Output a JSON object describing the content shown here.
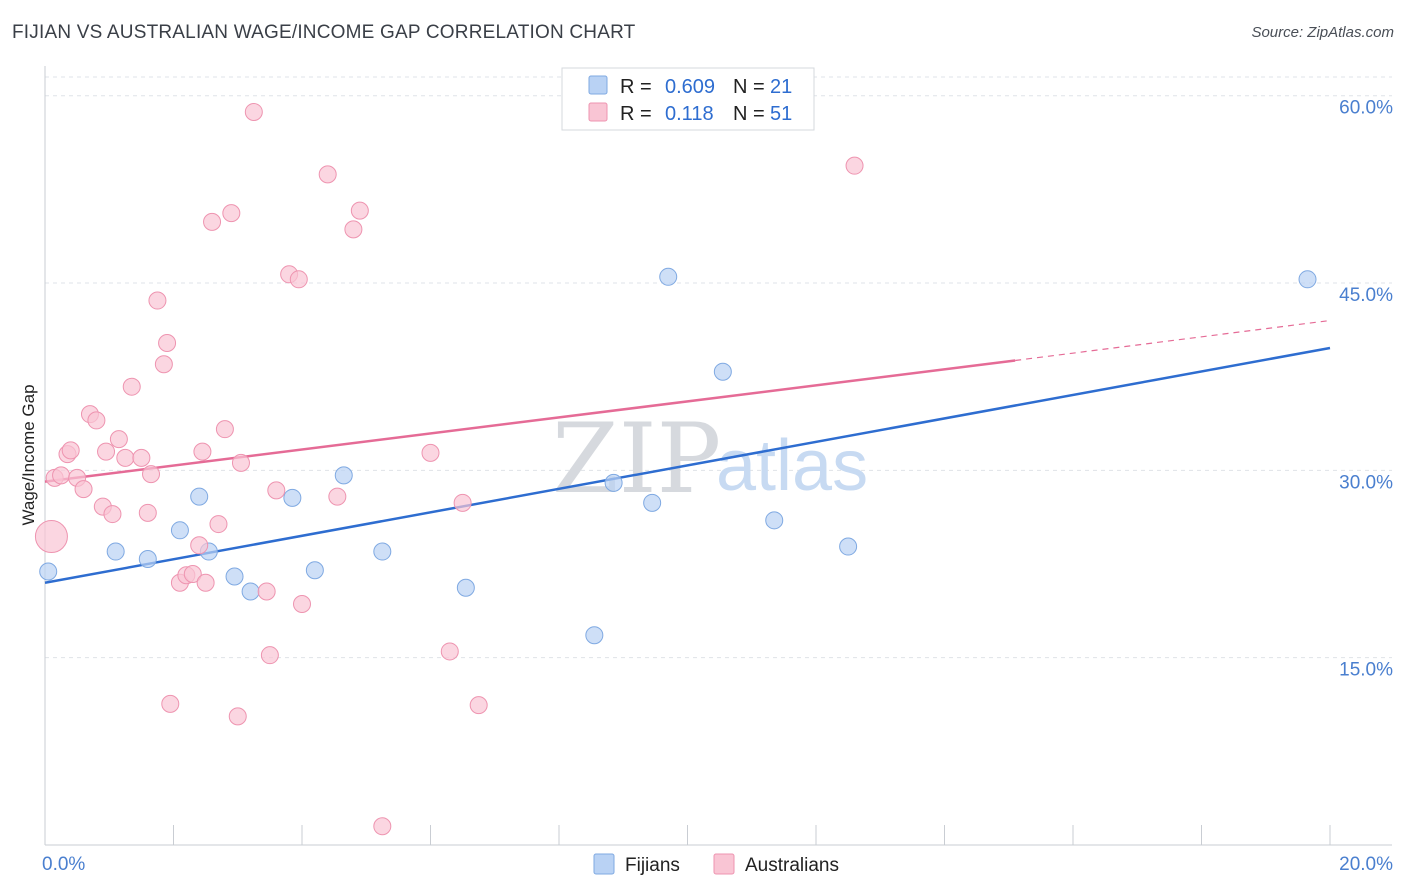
{
  "title": "FIJIAN VS AUSTRALIAN WAGE/INCOME GAP CORRELATION CHART",
  "source": "Source: ZipAtlas.com",
  "watermark": {
    "zip": "ZIP",
    "atlas": "atlas"
  },
  "colors": {
    "fijians_fill": "#b9d2f4",
    "fijians_stroke": "#7fa9e2",
    "fijians_line": "#2e6dd0",
    "australians_fill": "#f9c5d4",
    "australians_stroke": "#ee94b0",
    "australians_line": "#e56b96",
    "grid": "#dfe3e8",
    "tick_text": "#4a7fcf"
  },
  "legend": {
    "rows": [
      {
        "series": "fijians",
        "r_label": "R =",
        "r_value": "0.609",
        "n_label": "N =",
        "n_value": "21"
      },
      {
        "series": "australians",
        "r_label": "R =",
        "r_value": "0.118",
        "n_label": "N =",
        "n_value": "51"
      }
    ]
  },
  "bottom_legend": [
    "Fijians",
    "Australians"
  ],
  "chart_data": {
    "type": "scatter",
    "title": "FIJIAN VS AUSTRALIAN WAGE/INCOME GAP CORRELATION CHART",
    "xlabel": "",
    "ylabel": "Wage/Income Gap",
    "xlim": [
      0,
      20
    ],
    "ylim": [
      0,
      61.5
    ],
    "x_tick_labels": [
      "0.0%",
      "20.0%"
    ],
    "y_ticks": [
      15,
      30,
      45,
      60
    ],
    "y_tick_labels": [
      "15.0%",
      "30.0%",
      "45.0%",
      "60.0%"
    ],
    "grid": true,
    "series": [
      {
        "name": "Fijians",
        "r": 0.609,
        "n": 21,
        "points": [
          [
            0.05,
            21.9
          ],
          [
            1.1,
            23.5
          ],
          [
            1.6,
            22.9
          ],
          [
            2.1,
            25.2
          ],
          [
            2.55,
            23.5
          ],
          [
            2.4,
            27.9
          ],
          [
            2.95,
            21.5
          ],
          [
            3.2,
            20.3
          ],
          [
            3.85,
            27.8
          ],
          [
            4.2,
            22.0
          ],
          [
            4.65,
            29.6
          ],
          [
            5.25,
            23.5
          ],
          [
            6.55,
            20.6
          ],
          [
            8.55,
            16.8
          ],
          [
            8.85,
            29.0
          ],
          [
            9.45,
            27.4
          ],
          [
            9.7,
            45.5
          ],
          [
            10.55,
            37.9
          ],
          [
            11.35,
            26.0
          ],
          [
            12.5,
            23.9
          ],
          [
            19.65,
            45.3
          ]
        ],
        "trend": {
          "x0": 0,
          "y0": 21.0,
          "x1": 20,
          "y1": 39.8
        }
      },
      {
        "name": "Australians",
        "r": 0.118,
        "n": 51,
        "points": [
          [
            0.1,
            24.7
          ],
          [
            0.15,
            29.4
          ],
          [
            0.25,
            29.6
          ],
          [
            0.35,
            31.3
          ],
          [
            0.4,
            31.6
          ],
          [
            0.5,
            29.4
          ],
          [
            0.6,
            28.5
          ],
          [
            0.7,
            34.5
          ],
          [
            0.8,
            34.0
          ],
          [
            0.9,
            27.1
          ],
          [
            0.95,
            31.5
          ],
          [
            1.05,
            26.5
          ],
          [
            1.15,
            32.5
          ],
          [
            1.25,
            31.0
          ],
          [
            1.35,
            36.7
          ],
          [
            1.5,
            31.0
          ],
          [
            1.6,
            26.6
          ],
          [
            1.65,
            29.7
          ],
          [
            1.75,
            43.6
          ],
          [
            1.85,
            38.5
          ],
          [
            1.9,
            40.2
          ],
          [
            1.95,
            11.3
          ],
          [
            2.1,
            21.0
          ],
          [
            2.2,
            21.6
          ],
          [
            2.3,
            21.7
          ],
          [
            2.4,
            24.0
          ],
          [
            2.45,
            31.5
          ],
          [
            2.5,
            21.0
          ],
          [
            2.6,
            49.9
          ],
          [
            2.7,
            25.7
          ],
          [
            2.8,
            33.3
          ],
          [
            2.9,
            50.6
          ],
          [
            3.0,
            10.3
          ],
          [
            3.05,
            30.6
          ],
          [
            3.25,
            58.7
          ],
          [
            3.45,
            20.3
          ],
          [
            3.5,
            15.2
          ],
          [
            3.6,
            28.4
          ],
          [
            3.8,
            45.7
          ],
          [
            3.95,
            45.3
          ],
          [
            4.0,
            19.3
          ],
          [
            4.4,
            53.7
          ],
          [
            4.55,
            27.9
          ],
          [
            4.8,
            49.3
          ],
          [
            4.9,
            50.8
          ],
          [
            5.25,
            1.5
          ],
          [
            6.0,
            31.4
          ],
          [
            6.3,
            15.5
          ],
          [
            6.5,
            27.4
          ],
          [
            6.75,
            11.2
          ],
          [
            12.6,
            54.4
          ]
        ],
        "trend": {
          "x0": 0,
          "y0": 29.1,
          "x1": 15.1,
          "y1": 38.8,
          "dash_to_x": 20,
          "dash_to_y": 42.0
        }
      }
    ]
  }
}
